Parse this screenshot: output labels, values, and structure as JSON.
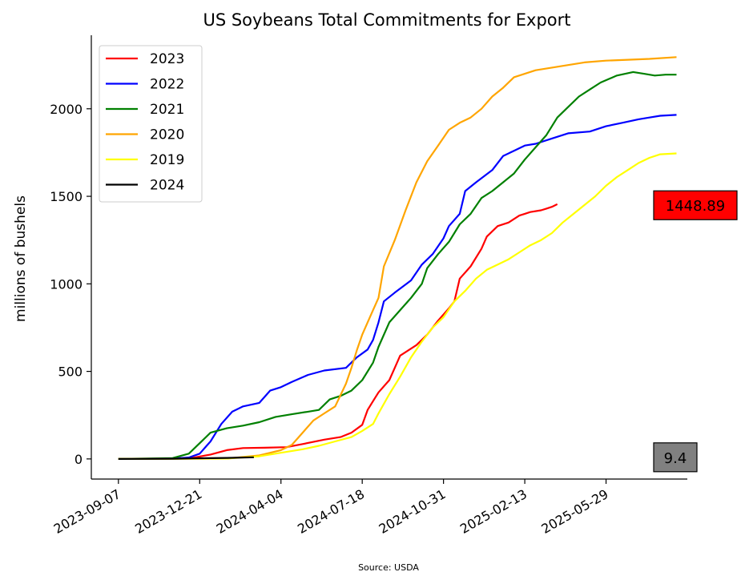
{
  "chart_data": {
    "type": "line",
    "title": "US Soybeans Total Commitments for Export",
    "xlabel": "",
    "ylabel": "millions of bushels",
    "source": "Source: USDA",
    "x_tick_labels": [
      "2023-09-07",
      "2023-12-21",
      "2024-04-04",
      "2024-07-18",
      "2024-10-31",
      "2025-02-13",
      "2025-05-29"
    ],
    "x_tick_weeks": [
      0,
      15,
      30,
      45,
      60,
      75,
      90
    ],
    "y_ticks": [
      0,
      500,
      1000,
      1500,
      2000
    ],
    "ylim": [
      -115,
      2420
    ],
    "xlim": [
      -5,
      105
    ],
    "legend_position": "top-left",
    "grid": false,
    "x_unit": "weeks since 2023-09-07",
    "series": [
      {
        "name": "2023",
        "color": "#ff0000",
        "points": [
          [
            0,
            0
          ],
          [
            5,
            0
          ],
          [
            10,
            2
          ],
          [
            14,
            8
          ],
          [
            17,
            25
          ],
          [
            20,
            50
          ],
          [
            23,
            62
          ],
          [
            27,
            64
          ],
          [
            31,
            67
          ],
          [
            34,
            85
          ],
          [
            38,
            110
          ],
          [
            41,
            125
          ],
          [
            43,
            150
          ],
          [
            45,
            195
          ],
          [
            46,
            280
          ],
          [
            47,
            330
          ],
          [
            48,
            380
          ],
          [
            50,
            450
          ],
          [
            51,
            520
          ],
          [
            52,
            590
          ],
          [
            55,
            650
          ],
          [
            57,
            710
          ],
          [
            59,
            790
          ],
          [
            61,
            860
          ],
          [
            62,
            900
          ],
          [
            63,
            1030
          ],
          [
            65,
            1100
          ],
          [
            67,
            1200
          ],
          [
            68,
            1270
          ],
          [
            70,
            1330
          ],
          [
            72,
            1350
          ],
          [
            74,
            1390
          ],
          [
            75,
            1400
          ],
          [
            76,
            1410
          ],
          [
            78,
            1420
          ],
          [
            79,
            1430
          ],
          [
            80,
            1440
          ],
          [
            81,
            1455
          ]
        ]
      },
      {
        "name": "2022",
        "color": "#0000ff",
        "points": [
          [
            0,
            0
          ],
          [
            10,
            2
          ],
          [
            13,
            8
          ],
          [
            15,
            30
          ],
          [
            17,
            100
          ],
          [
            19,
            200
          ],
          [
            21,
            270
          ],
          [
            23,
            300
          ],
          [
            26,
            320
          ],
          [
            28,
            390
          ],
          [
            30,
            410
          ],
          [
            32,
            440
          ],
          [
            35,
            480
          ],
          [
            38,
            505
          ],
          [
            42,
            520
          ],
          [
            44,
            580
          ],
          [
            46,
            625
          ],
          [
            47,
            680
          ],
          [
            48,
            780
          ],
          [
            49,
            900
          ],
          [
            51,
            950
          ],
          [
            54,
            1020
          ],
          [
            56,
            1110
          ],
          [
            58,
            1170
          ],
          [
            60,
            1260
          ],
          [
            61,
            1330
          ],
          [
            63,
            1400
          ],
          [
            64,
            1530
          ],
          [
            66,
            1580
          ],
          [
            69,
            1650
          ],
          [
            71,
            1730
          ],
          [
            73,
            1760
          ],
          [
            75,
            1790
          ],
          [
            77,
            1800
          ],
          [
            80,
            1830
          ],
          [
            83,
            1860
          ],
          [
            87,
            1870
          ],
          [
            90,
            1900
          ],
          [
            93,
            1920
          ],
          [
            96,
            1940
          ],
          [
            98,
            1950
          ],
          [
            100,
            1960
          ],
          [
            103,
            1965
          ]
        ]
      },
      {
        "name": "2021",
        "color": "#008000",
        "points": [
          [
            0,
            0
          ],
          [
            10,
            5
          ],
          [
            13,
            30
          ],
          [
            15,
            90
          ],
          [
            17,
            150
          ],
          [
            20,
            175
          ],
          [
            23,
            190
          ],
          [
            26,
            210
          ],
          [
            29,
            240
          ],
          [
            32,
            255
          ],
          [
            35,
            270
          ],
          [
            37,
            280
          ],
          [
            39,
            340
          ],
          [
            41,
            360
          ],
          [
            43,
            390
          ],
          [
            45,
            450
          ],
          [
            47,
            550
          ],
          [
            48,
            640
          ],
          [
            50,
            780
          ],
          [
            52,
            850
          ],
          [
            54,
            920
          ],
          [
            56,
            1000
          ],
          [
            57,
            1090
          ],
          [
            59,
            1170
          ],
          [
            61,
            1240
          ],
          [
            63,
            1340
          ],
          [
            65,
            1400
          ],
          [
            67,
            1490
          ],
          [
            69,
            1530
          ],
          [
            71,
            1580
          ],
          [
            73,
            1630
          ],
          [
            75,
            1710
          ],
          [
            77,
            1780
          ],
          [
            79,
            1850
          ],
          [
            81,
            1950
          ],
          [
            83,
            2010
          ],
          [
            85,
            2070
          ],
          [
            87,
            2110
          ],
          [
            89,
            2150
          ],
          [
            92,
            2190
          ],
          [
            95,
            2210
          ],
          [
            97,
            2200
          ],
          [
            99,
            2190
          ],
          [
            101,
            2195
          ],
          [
            103,
            2195
          ]
        ]
      },
      {
        "name": "2020",
        "color": "#ffa500",
        "points": [
          [
            0,
            0
          ],
          [
            20,
            2
          ],
          [
            26,
            20
          ],
          [
            30,
            50
          ],
          [
            32,
            80
          ],
          [
            34,
            150
          ],
          [
            36,
            220
          ],
          [
            38,
            260
          ],
          [
            40,
            300
          ],
          [
            42,
            430
          ],
          [
            43,
            520
          ],
          [
            44,
            620
          ],
          [
            45,
            710
          ],
          [
            46,
            780
          ],
          [
            47,
            850
          ],
          [
            48,
            920
          ],
          [
            49,
            1100
          ],
          [
            51,
            1250
          ],
          [
            53,
            1420
          ],
          [
            55,
            1580
          ],
          [
            57,
            1700
          ],
          [
            59,
            1790
          ],
          [
            61,
            1880
          ],
          [
            63,
            1920
          ],
          [
            65,
            1950
          ],
          [
            67,
            2000
          ],
          [
            69,
            2070
          ],
          [
            71,
            2120
          ],
          [
            73,
            2180
          ],
          [
            75,
            2200
          ],
          [
            77,
            2220
          ],
          [
            80,
            2235
          ],
          [
            83,
            2250
          ],
          [
            86,
            2265
          ],
          [
            90,
            2275
          ],
          [
            94,
            2280
          ],
          [
            98,
            2285
          ],
          [
            103,
            2295
          ]
        ]
      },
      {
        "name": "2019",
        "color": "#ffff00",
        "points": [
          [
            0,
            0
          ],
          [
            20,
            2
          ],
          [
            26,
            15
          ],
          [
            30,
            35
          ],
          [
            34,
            55
          ],
          [
            37,
            75
          ],
          [
            40,
            100
          ],
          [
            43,
            125
          ],
          [
            45,
            160
          ],
          [
            47,
            200
          ],
          [
            48,
            260
          ],
          [
            50,
            370
          ],
          [
            52,
            470
          ],
          [
            54,
            580
          ],
          [
            56,
            670
          ],
          [
            58,
            750
          ],
          [
            60,
            810
          ],
          [
            62,
            900
          ],
          [
            64,
            960
          ],
          [
            66,
            1030
          ],
          [
            68,
            1080
          ],
          [
            70,
            1110
          ],
          [
            72,
            1140
          ],
          [
            74,
            1180
          ],
          [
            76,
            1220
          ],
          [
            78,
            1250
          ],
          [
            80,
            1290
          ],
          [
            82,
            1350
          ],
          [
            84,
            1400
          ],
          [
            86,
            1450
          ],
          [
            88,
            1500
          ],
          [
            90,
            1560
          ],
          [
            92,
            1610
          ],
          [
            94,
            1650
          ],
          [
            96,
            1690
          ],
          [
            98,
            1720
          ],
          [
            100,
            1740
          ],
          [
            103,
            1745
          ]
        ]
      },
      {
        "name": "2024",
        "color": "#000000",
        "points": [
          [
            0,
            0
          ],
          [
            10,
            1
          ],
          [
            14,
            3
          ],
          [
            20,
            6
          ],
          [
            25,
            9.4
          ]
        ]
      }
    ],
    "annotations": [
      {
        "label": "1448.89",
        "value": 1448.89,
        "bg": "#ff0000"
      },
      {
        "label": "9.4",
        "value": 9.4,
        "bg": "#808080"
      }
    ]
  }
}
